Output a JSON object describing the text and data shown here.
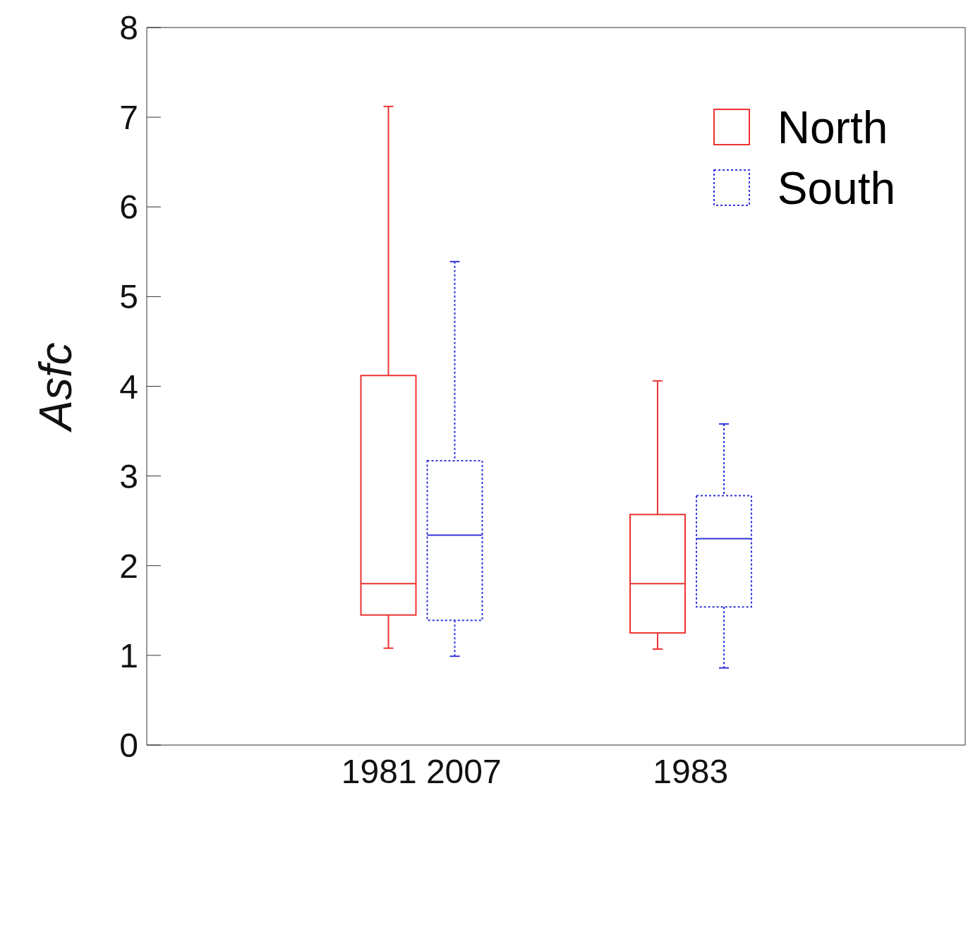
{
  "chart_data": {
    "type": "box",
    "ylabel": "Asfc",
    "categories": [
      "1981 2007",
      "1983"
    ],
    "ylim": [
      0,
      8
    ],
    "yticks": [
      0,
      1,
      2,
      3,
      4,
      5,
      6,
      7,
      8
    ],
    "grid": false,
    "legend": "top right",
    "series": [
      {
        "name": "North",
        "color": "#ee3333",
        "line_style": "solid",
        "boxes": [
          {
            "low": 1.08,
            "q1": 1.45,
            "median": 1.8,
            "q3": 4.12,
            "high": 7.12
          },
          {
            "low": 1.07,
            "q1": 1.25,
            "median": 1.8,
            "q3": 2.57,
            "high": 4.06
          }
        ]
      },
      {
        "name": "South",
        "color": "#3333dd",
        "line_style": "dotted",
        "boxes": [
          {
            "low": 0.99,
            "q1": 1.39,
            "median": 2.34,
            "q3": 3.17,
            "high": 5.39
          },
          {
            "low": 0.86,
            "q1": 1.54,
            "median": 2.3,
            "q3": 2.78,
            "high": 3.58
          }
        ]
      }
    ]
  }
}
